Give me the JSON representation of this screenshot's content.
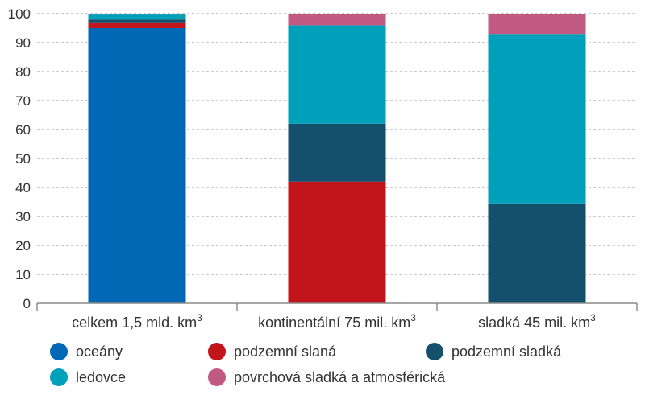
{
  "chart_data": {
    "type": "bar",
    "stacked": true,
    "ylim": [
      0,
      100
    ],
    "yticks": [
      0,
      10,
      20,
      30,
      40,
      50,
      60,
      70,
      80,
      90,
      100
    ],
    "grid": true,
    "categories": [
      {
        "label": "celkem 1,5 mld. km",
        "sup": "3"
      },
      {
        "label": "kontinentální 75 mil. km",
        "sup": "3"
      },
      {
        "label": "sladká 45 mil. km",
        "sup": "3"
      }
    ],
    "series": [
      {
        "name": "oceány",
        "color": "#0068b4",
        "values": [
          95,
          0,
          0
        ]
      },
      {
        "name": "podzemní slaná",
        "color": "#c1151b",
        "values": [
          2,
          42,
          0
        ]
      },
      {
        "name": "podzemní sladká",
        "color": "#154f6e",
        "values": [
          1,
          20,
          34.5
        ]
      },
      {
        "name": "ledovce",
        "color": "#009fba",
        "values": [
          1.7,
          34,
          58.5
        ]
      },
      {
        "name": "povrchová sladká a atmosférická",
        "color": "#c05a82",
        "values": [
          0.3,
          4,
          7
        ]
      }
    ]
  }
}
